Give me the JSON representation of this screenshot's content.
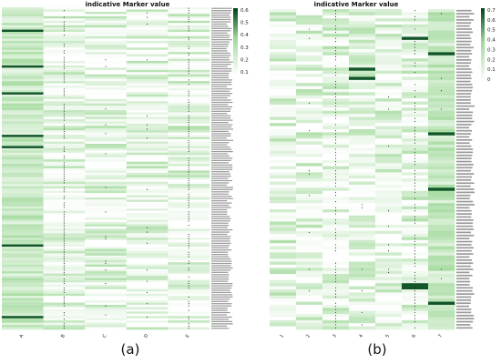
{
  "captions": {
    "a": "(a)",
    "b": "(b)"
  },
  "chart_data": [
    {
      "type": "heatmap",
      "title": "indicative Marker value",
      "columns": [
        "A",
        "B",
        "C",
        "D",
        "E"
      ],
      "rows": 144,
      "colorbar": {
        "ticks": [
          "0.6",
          "0.5",
          "0.4",
          "0.3",
          "0.2",
          "0.1"
        ],
        "range": [
          0,
          0.6
        ],
        "min_color": "#ffffff",
        "max_color": "#00441b"
      },
      "strong_cells": [
        [
          10,
          0
        ],
        [
          26,
          0
        ],
        [
          38,
          0
        ],
        [
          57,
          0
        ],
        [
          62,
          0
        ],
        [
          106,
          0
        ],
        [
          138,
          0
        ]
      ],
      "marker_columns": [
        1,
        4
      ]
    },
    {
      "type": "heatmap",
      "title": "indicative Marker value",
      "columns": [
        "1",
        "2",
        "3",
        "4",
        "5",
        "6",
        "7"
      ],
      "rows": 104,
      "colorbar": {
        "ticks": [
          "0.7",
          "0.6",
          "0.5",
          "0.4",
          "0.3",
          "0.2",
          "0.1",
          "0"
        ],
        "range": [
          0,
          0.7
        ],
        "min_color": "#ffffff",
        "max_color": "#00441b"
      },
      "strong_cells": [
        [
          9,
          5
        ],
        [
          19,
          3
        ],
        [
          22,
          3
        ],
        [
          89,
          5
        ],
        [
          90,
          5
        ],
        [
          14,
          6
        ],
        [
          40,
          6
        ],
        [
          58,
          6
        ],
        [
          95,
          6
        ]
      ],
      "marker_columns": [
        2,
        5
      ]
    }
  ]
}
